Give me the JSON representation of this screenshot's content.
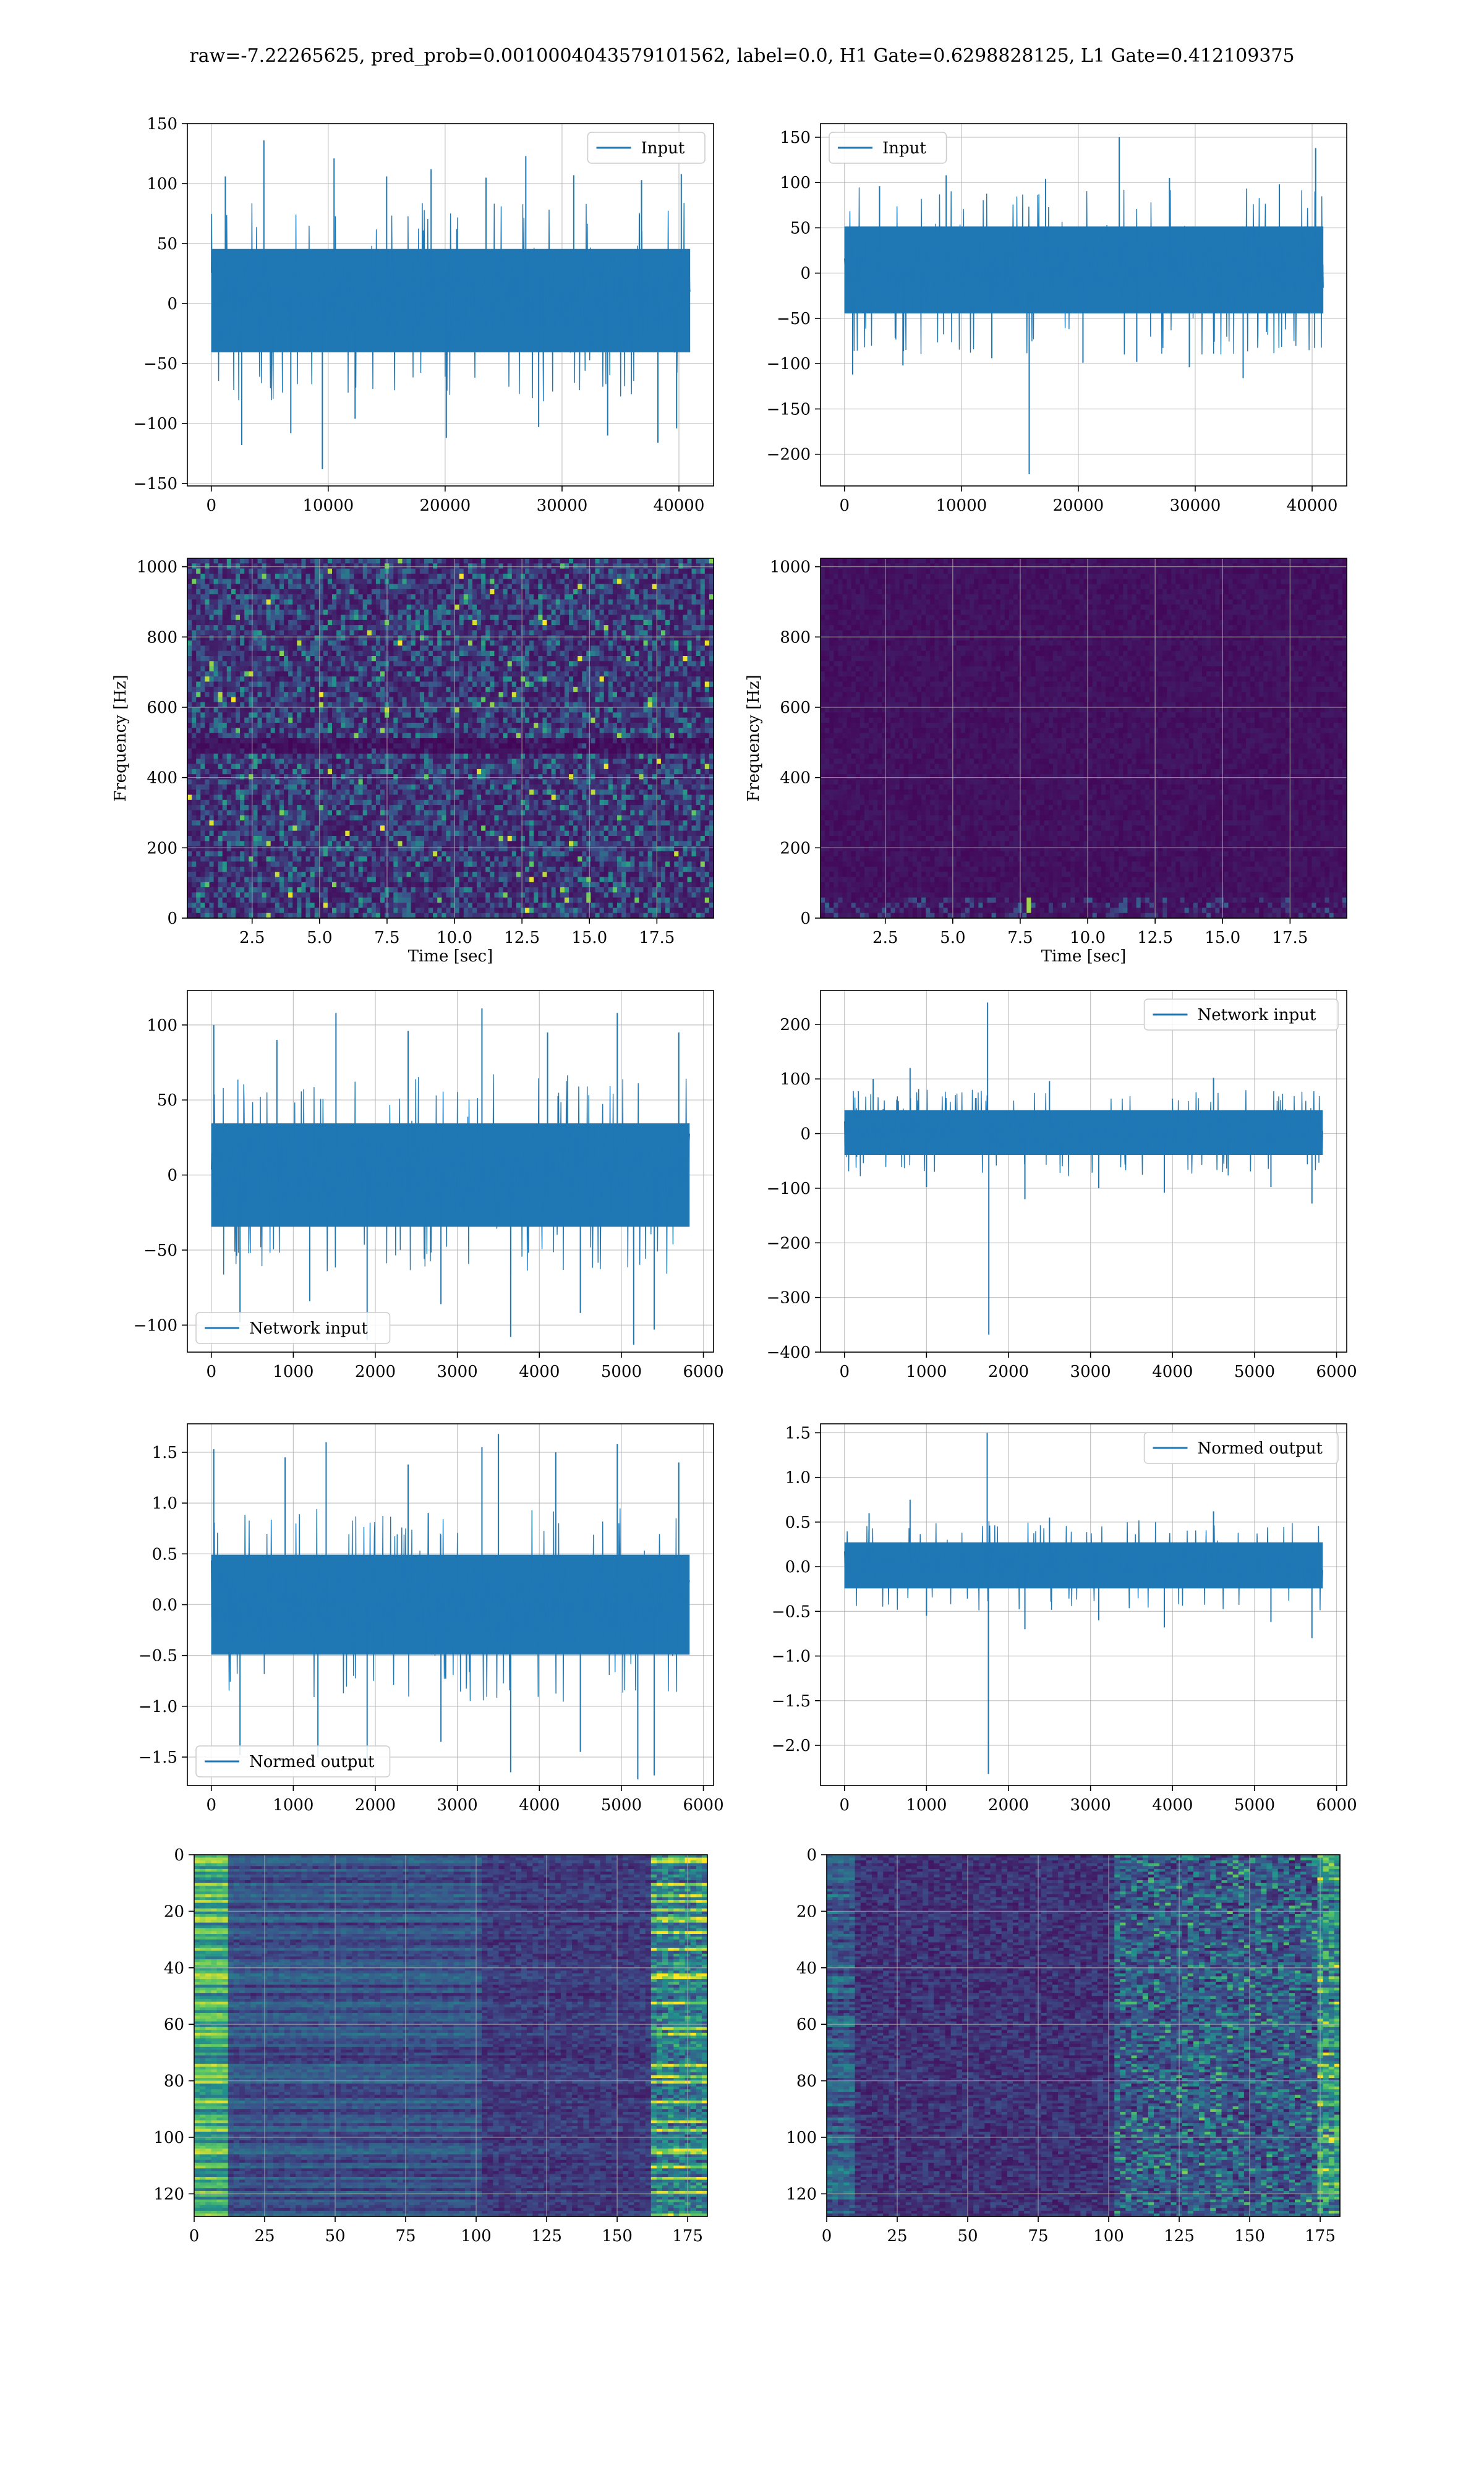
{
  "figure": {
    "title": "raw=-7.22265625, pred_prob=0.0010004043579101562, label=0.0, H1 Gate=0.6298828125, L1 Gate=0.412109375"
  },
  "colors": {
    "line": "#1f77b4",
    "grid": "#b0b0b0",
    "viridis_dark": "#440154",
    "viridis_mid": "#31688e",
    "viridis_teal": "#35b779",
    "viridis_yellow": "#fde725"
  },
  "chart_data": [
    {
      "id": "h1-input",
      "type": "line",
      "legend": "Input",
      "legend_loc": "upper-right",
      "xlim": [
        -2048,
        42960
      ],
      "ylim": [
        -152,
        150
      ],
      "xticks": [
        0,
        10000,
        20000,
        30000,
        40000
      ],
      "xticklabels": [
        "0",
        "10000",
        "20000",
        "30000",
        "40000"
      ],
      "yticks": [
        -150,
        -100,
        -50,
        0,
        50,
        100,
        150
      ],
      "yticklabels": [
        "−150",
        "−100",
        "−50",
        "0",
        "50",
        "100",
        "150"
      ],
      "x_range": [
        0,
        40960
      ],
      "band": [
        -50,
        55
      ],
      "spikes": [
        [
          1200,
          106
        ],
        [
          2600,
          -118
        ],
        [
          4500,
          136
        ],
        [
          6800,
          -108
        ],
        [
          9500,
          -138
        ],
        [
          10500,
          121
        ],
        [
          12300,
          -96
        ],
        [
          15000,
          106
        ],
        [
          18800,
          112
        ],
        [
          20100,
          -112
        ],
        [
          23500,
          105
        ],
        [
          26900,
          123
        ],
        [
          28000,
          -103
        ],
        [
          31000,
          107
        ],
        [
          33900,
          -110
        ],
        [
          36800,
          103
        ],
        [
          38200,
          -116
        ],
        [
          39800,
          -104
        ],
        [
          40200,
          108
        ]
      ],
      "grid": true,
      "xlabel": "",
      "ylabel": ""
    },
    {
      "id": "l1-input",
      "type": "line",
      "legend": "Input",
      "legend_loc": "upper-left",
      "xlim": [
        -2048,
        42960
      ],
      "ylim": [
        -235,
        165
      ],
      "xticks": [
        0,
        10000,
        20000,
        30000,
        40000
      ],
      "xticklabels": [
        "0",
        "10000",
        "20000",
        "30000",
        "40000"
      ],
      "yticks": [
        -200,
        -150,
        -100,
        -50,
        0,
        50,
        100,
        150
      ],
      "yticklabels": [
        "−200",
        "−150",
        "−100",
        "−50",
        "0",
        "50",
        "100",
        "150"
      ],
      "x_range": [
        0,
        40960
      ],
      "band": [
        -55,
        62
      ],
      "spikes": [
        [
          700,
          -112
        ],
        [
          3000,
          96
        ],
        [
          5000,
          -102
        ],
        [
          8700,
          108
        ],
        [
          12600,
          -94
        ],
        [
          15800,
          -222
        ],
        [
          17200,
          104
        ],
        [
          20400,
          -99
        ],
        [
          23500,
          150
        ],
        [
          25000,
          -98
        ],
        [
          27800,
          105
        ],
        [
          29500,
          -104
        ],
        [
          34100,
          -116
        ],
        [
          37200,
          98
        ],
        [
          40300,
          138
        ]
      ],
      "grid": true,
      "xlabel": "",
      "ylabel": ""
    },
    {
      "id": "h1-spectrogram",
      "type": "heatmap",
      "xlim": [
        0.1,
        19.6
      ],
      "ylim": [
        0,
        1024
      ],
      "xticks": [
        2.5,
        5.0,
        7.5,
        10.0,
        12.5,
        15.0,
        17.5
      ],
      "xticklabels": [
        "2.5",
        "5.0",
        "7.5",
        "10.0",
        "12.5",
        "15.0",
        "17.5"
      ],
      "yticks": [
        0,
        200,
        400,
        600,
        800,
        1000
      ],
      "yticklabels": [
        "0",
        "200",
        "400",
        "600",
        "800",
        "1000"
      ],
      "xlabel": "Time [sec]",
      "ylabel": "Frequency [Hz]",
      "intensity": "high",
      "dark_band": [
        475,
        505
      ],
      "grid": true
    },
    {
      "id": "l1-spectrogram",
      "type": "heatmap",
      "xlim": [
        0.1,
        19.6
      ],
      "ylim": [
        0,
        1024
      ],
      "xticks": [
        2.5,
        5.0,
        7.5,
        10.0,
        12.5,
        15.0,
        17.5
      ],
      "xticklabels": [
        "2.5",
        "5.0",
        "7.5",
        "10.0",
        "12.5",
        "15.0",
        "17.5"
      ],
      "yticks": [
        0,
        200,
        400,
        600,
        800,
        1000
      ],
      "yticklabels": [
        "0",
        "200",
        "400",
        "600",
        "800",
        "1000"
      ],
      "xlabel": "Time [sec]",
      "ylabel": "Frequency [Hz]",
      "intensity": "low",
      "hot_spot": [
        7.8,
        40
      ],
      "grid": true
    },
    {
      "id": "h1-network-input",
      "type": "line",
      "legend": "Network input",
      "legend_loc": "lower-left",
      "xlim": [
        -292,
        6124
      ],
      "ylim": [
        -118,
        123
      ],
      "xticks": [
        0,
        1000,
        2000,
        3000,
        4000,
        5000,
        6000
      ],
      "xticklabels": [
        "0",
        "1000",
        "2000",
        "3000",
        "4000",
        "5000",
        "6000"
      ],
      "yticks": [
        -100,
        -50,
        0,
        50,
        100
      ],
      "yticklabels": [
        "−100",
        "−50",
        "0",
        "50",
        "100"
      ],
      "x_range": [
        0,
        5832
      ],
      "band": [
        -42,
        42
      ],
      "spikes": [
        [
          30,
          100
        ],
        [
          350,
          -98
        ],
        [
          800,
          90
        ],
        [
          1200,
          -84
        ],
        [
          1520,
          108
        ],
        [
          1900,
          -110
        ],
        [
          2400,
          96
        ],
        [
          2800,
          -86
        ],
        [
          3300,
          111
        ],
        [
          3650,
          -108
        ],
        [
          4100,
          95
        ],
        [
          4500,
          -92
        ],
        [
          4950,
          108
        ],
        [
          5150,
          -113
        ],
        [
          5400,
          -103
        ],
        [
          5700,
          95
        ]
      ],
      "grid": true,
      "xlabel": "",
      "ylabel": ""
    },
    {
      "id": "l1-network-input",
      "type": "line",
      "legend": "Network input",
      "legend_loc": "upper-right",
      "xlim": [
        -292,
        6124
      ],
      "ylim": [
        -400,
        262
      ],
      "xticks": [
        0,
        1000,
        2000,
        3000,
        4000,
        5000,
        6000
      ],
      "xticklabels": [
        "0",
        "1000",
        "2000",
        "3000",
        "4000",
        "5000",
        "6000"
      ],
      "yticks": [
        -400,
        -300,
        -200,
        -100,
        0,
        100,
        200
      ],
      "yticklabels": [
        "−400",
        "−300",
        "−200",
        "−100",
        "0",
        "100",
        "200"
      ],
      "x_range": [
        0,
        5832
      ],
      "band": [
        -48,
        52
      ],
      "spikes": [
        [
          350,
          100
        ],
        [
          800,
          120
        ],
        [
          1000,
          -98
        ],
        [
          1745,
          240
        ],
        [
          1760,
          -368
        ],
        [
          2200,
          -120
        ],
        [
          2500,
          96
        ],
        [
          3100,
          -100
        ],
        [
          3900,
          -108
        ],
        [
          4500,
          102
        ],
        [
          5200,
          -98
        ],
        [
          5700,
          -128
        ]
      ],
      "grid": true,
      "xlabel": "",
      "ylabel": ""
    },
    {
      "id": "h1-normed-output",
      "type": "line",
      "legend": "Normed output",
      "legend_loc": "lower-left",
      "xlim": [
        -292,
        6124
      ],
      "ylim": [
        -1.78,
        1.78
      ],
      "xticks": [
        0,
        1000,
        2000,
        3000,
        4000,
        5000,
        6000
      ],
      "xticklabels": [
        "0",
        "1000",
        "2000",
        "3000",
        "4000",
        "5000",
        "6000"
      ],
      "yticks": [
        -1.5,
        -1.0,
        -0.5,
        0.0,
        0.5,
        1.0,
        1.5
      ],
      "yticklabels": [
        "−1.5",
        "−1.0",
        "−0.5",
        "0.0",
        "0.5",
        "1.0",
        "1.5"
      ],
      "x_range": [
        0,
        5832
      ],
      "band": [
        -0.6,
        0.6
      ],
      "spikes": [
        [
          30,
          1.53
        ],
        [
          350,
          -1.48
        ],
        [
          900,
          1.45
        ],
        [
          1300,
          -1.5
        ],
        [
          1400,
          1.6
        ],
        [
          1900,
          -1.62
        ],
        [
          2400,
          1.38
        ],
        [
          2800,
          -1.35
        ],
        [
          3300,
          1.55
        ],
        [
          3650,
          -1.65
        ],
        [
          3500,
          1.68
        ],
        [
          4200,
          1.5
        ],
        [
          4500,
          -1.45
        ],
        [
          4950,
          1.58
        ],
        [
          5200,
          -1.72
        ],
        [
          5400,
          -1.68
        ],
        [
          5700,
          1.4
        ]
      ],
      "grid": true,
      "xlabel": "",
      "ylabel": ""
    },
    {
      "id": "l1-normed-output",
      "type": "line",
      "legend": "Normed output",
      "legend_loc": "upper-right",
      "xlim": [
        -292,
        6124
      ],
      "ylim": [
        -2.45,
        1.6
      ],
      "xticks": [
        0,
        1000,
        2000,
        3000,
        4000,
        5000,
        6000
      ],
      "xticklabels": [
        "0",
        "1000",
        "2000",
        "3000",
        "4000",
        "5000",
        "6000"
      ],
      "yticks": [
        -2.0,
        -1.5,
        -1.0,
        -0.5,
        0.0,
        0.5,
        1.0,
        1.5
      ],
      "yticklabels": [
        "−2.0",
        "−1.5",
        "−1.0",
        "−0.5",
        "0.0",
        "0.5",
        "1.0",
        "1.5"
      ],
      "x_range": [
        0,
        5832
      ],
      "band": [
        -0.3,
        0.33
      ],
      "spikes": [
        [
          300,
          0.6
        ],
        [
          800,
          0.75
        ],
        [
          1000,
          -0.55
        ],
        [
          1740,
          1.5
        ],
        [
          1755,
          -2.32
        ],
        [
          2200,
          -0.7
        ],
        [
          2500,
          0.55
        ],
        [
          3100,
          -0.6
        ],
        [
          3900,
          -0.68
        ],
        [
          4500,
          0.62
        ],
        [
          5200,
          -0.62
        ],
        [
          5700,
          -0.8
        ]
      ],
      "grid": true,
      "xlabel": "",
      "ylabel": ""
    },
    {
      "id": "h1-feature-map",
      "type": "heatmap",
      "xlim": [
        0,
        182
      ],
      "ylim": [
        128,
        0
      ],
      "xticks": [
        0,
        25,
        50,
        75,
        100,
        125,
        150,
        175
      ],
      "xticklabels": [
        "0",
        "25",
        "50",
        "75",
        "100",
        "125",
        "150",
        "175"
      ],
      "yticks": [
        0,
        20,
        40,
        60,
        80,
        100,
        120
      ],
      "yticklabels": [
        "0",
        "20",
        "40",
        "60",
        "80",
        "100",
        "120"
      ],
      "pattern": "horizontal-streaks",
      "grid": true,
      "xlabel": "",
      "ylabel": ""
    },
    {
      "id": "l1-feature-map",
      "type": "heatmap",
      "xlim": [
        0,
        182
      ],
      "ylim": [
        128,
        0
      ],
      "xticks": [
        0,
        25,
        50,
        75,
        100,
        125,
        150,
        175
      ],
      "xticklabels": [
        "0",
        "25",
        "50",
        "75",
        "100",
        "125",
        "150",
        "175"
      ],
      "yticks": [
        0,
        20,
        40,
        60,
        80,
        100,
        120
      ],
      "yticklabels": [
        "0",
        "20",
        "40",
        "60",
        "80",
        "100",
        "120"
      ],
      "pattern": "speckled-right",
      "grid": true,
      "xlabel": "",
      "ylabel": ""
    }
  ]
}
